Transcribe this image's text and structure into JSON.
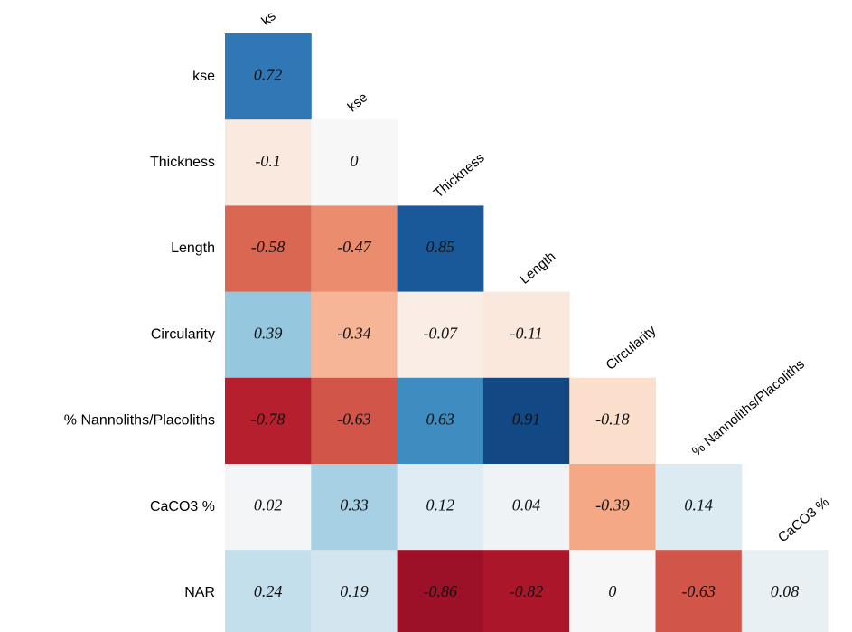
{
  "chart_data": {
    "type": "heatmap",
    "rows": [
      "kse",
      "Thickness",
      "Length",
      "Circularity",
      "% Nannoliths/Placoliths",
      "CaCO3 %",
      "NAR"
    ],
    "columns": [
      "ks",
      "kse",
      "Thickness",
      "Length",
      "Circularity",
      "% Nannoliths/Placoliths",
      "CaCO3 %"
    ],
    "values": [
      [
        0.72
      ],
      [
        -0.1,
        0
      ],
      [
        -0.58,
        -0.47,
        0.85
      ],
      [
        0.39,
        -0.34,
        -0.07,
        -0.11
      ],
      [
        -0.78,
        -0.63,
        0.63,
        0.91,
        -0.18
      ],
      [
        0.02,
        0.33,
        0.12,
        0.04,
        -0.39,
        0.14
      ],
      [
        0.24,
        0.19,
        -0.86,
        -0.82,
        0,
        -0.63,
        0.08
      ]
    ],
    "vlim": [
      -1,
      1
    ],
    "colorscale": [
      "#67001f",
      "#b2182b",
      "#d6604d",
      "#f4a582",
      "#fddbc7",
      "#f7f7f7",
      "#d1e5f0",
      "#92c5de",
      "#4393c3",
      "#2166ac",
      "#053061"
    ]
  }
}
